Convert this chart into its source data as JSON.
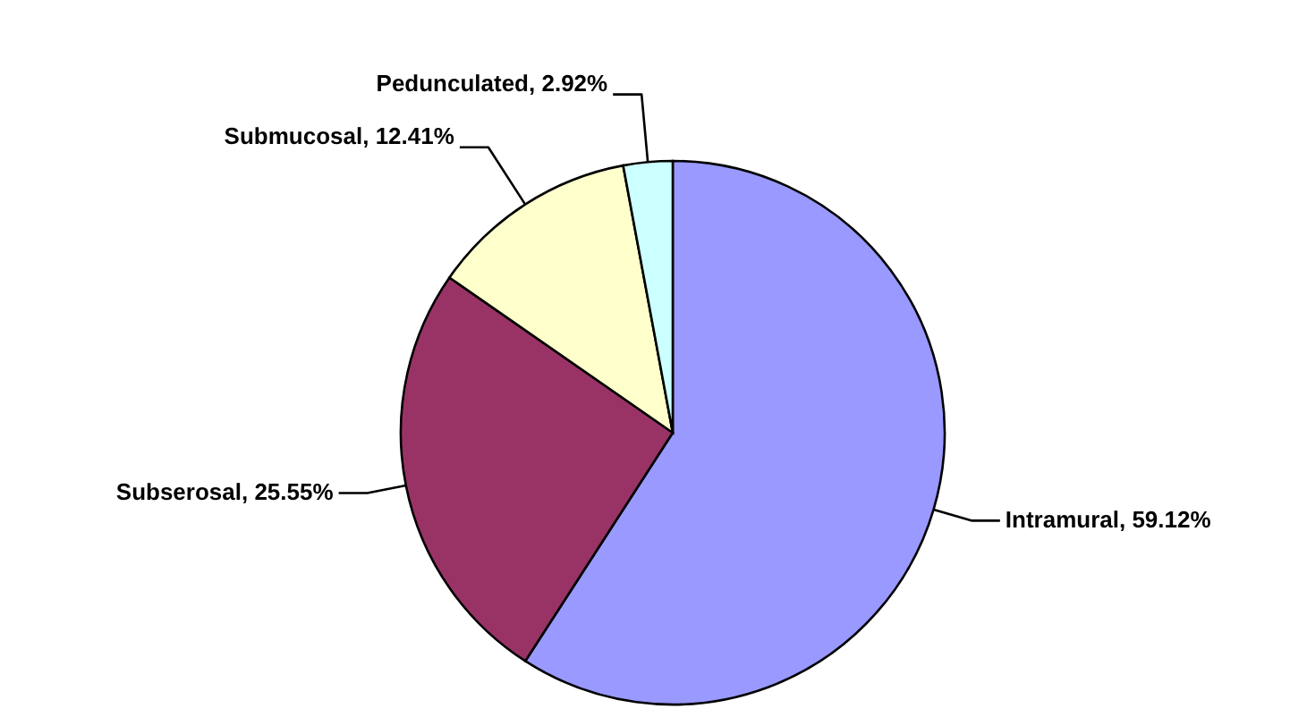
{
  "chart_data": {
    "type": "pie",
    "categories": [
      "Intramural",
      "Subserosal",
      "Submucosal",
      "Pedunculated"
    ],
    "values": [
      59.12,
      25.55,
      12.41,
      2.92
    ],
    "colors": [
      "#9999ff",
      "#993366",
      "#ffffcc",
      "#ccffff"
    ],
    "value_labels": [
      "59.12%",
      "25.55%",
      "12.41%",
      "2.92%"
    ]
  }
}
